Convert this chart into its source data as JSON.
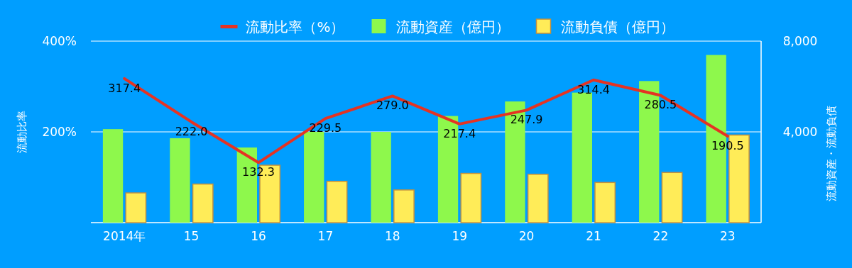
{
  "chart_data": {
    "type": "bar",
    "categories": [
      "2014年",
      "15",
      "16",
      "17",
      "18",
      "19",
      "20",
      "21",
      "22",
      "23"
    ],
    "series": [
      {
        "name": "流動比率（%）",
        "type": "line",
        "color": "#e53323",
        "values": [
          317.4,
          222.0,
          132.3,
          229.5,
          279.0,
          217.4,
          247.9,
          314.4,
          280.5,
          190.5
        ],
        "value_labels": [
          "317.4",
          "222.0",
          "132.3",
          "229.5",
          "279.0",
          "217.4",
          "247.9",
          "314.4",
          "280.5",
          "190.5"
        ]
      },
      {
        "name": "流動資産（億円）",
        "color": "#8ef84c",
        "axis": "y2",
        "values": [
          4120,
          3720,
          3310,
          4000,
          4000,
          4700,
          5340,
          5730,
          6240,
          7390
        ]
      },
      {
        "name": "流動負債（億円）",
        "color": "#ffec58",
        "axis": "y2",
        "values": [
          1310,
          1700,
          2530,
          1820,
          1440,
          2170,
          2130,
          1770,
          2210,
          3860
        ]
      }
    ],
    "ylabel": "流動比率",
    "y2label": "流動資産・流動負債",
    "ylim": [
      0,
      400
    ],
    "yticks": [
      {
        "value": 200,
        "label": "200%"
      },
      {
        "value": 400,
        "label": "400%"
      }
    ],
    "y2lim": [
      0,
      8000
    ],
    "y2ticks": [
      {
        "value": 4000,
        "label": "4,000"
      },
      {
        "value": 8000,
        "label": "8,000"
      }
    ],
    "grid": "y",
    "legend": "top"
  }
}
